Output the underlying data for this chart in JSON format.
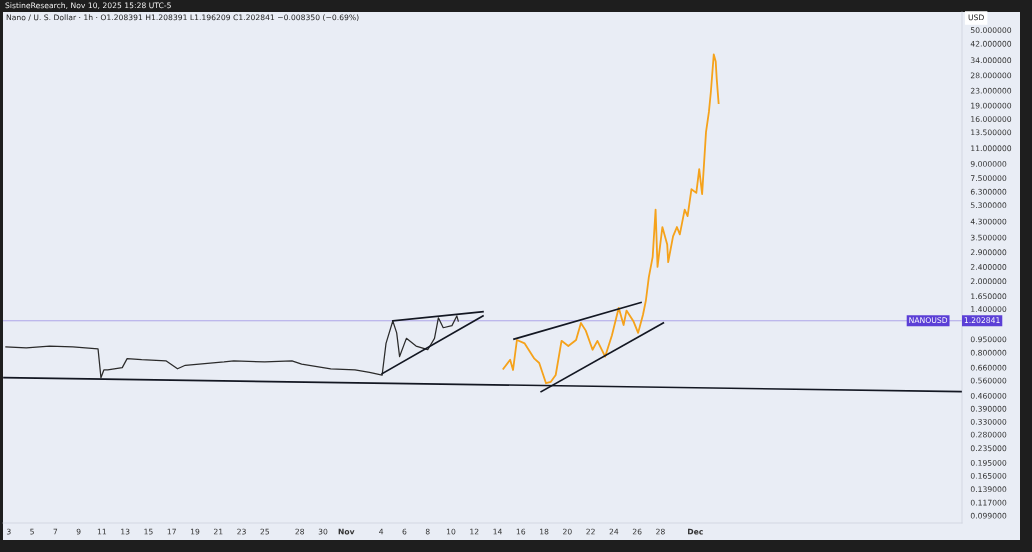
{
  "chart_data": {
    "type": "line",
    "title": "Nano / U. S. Dollar · 1h · O1.208391 H1.208391 L1.196209 C1.202841 −0.008350 (−0.69%)",
    "annotations": [
      "SistineResearch, Nov 10, 2025 15:28 UTC-5",
      "1.202841"
    ],
    "ylabel": "USD",
    "log": true,
    "xlim": [
      "2025-10-02T12:00",
      "2025-12-23T22:00"
    ],
    "xticks": [
      {
        "value": "2025-10-03",
        "label": "3"
      },
      {
        "value": "2025-10-05",
        "label": "5"
      },
      {
        "value": "2025-10-07",
        "label": "7"
      },
      {
        "value": "2025-10-09",
        "label": "9"
      },
      {
        "value": "2025-10-11",
        "label": "11"
      },
      {
        "value": "2025-10-13",
        "label": "13"
      },
      {
        "value": "2025-10-15",
        "label": "15"
      },
      {
        "value": "2025-10-17",
        "label": "17"
      },
      {
        "value": "2025-10-19",
        "label": "19"
      },
      {
        "value": "2025-10-21",
        "label": "21"
      },
      {
        "value": "2025-10-23",
        "label": "23"
      },
      {
        "value": "2025-10-25",
        "label": "25"
      },
      {
        "value": "2025-10-28",
        "label": "28"
      },
      {
        "value": "2025-10-30",
        "label": "30"
      },
      {
        "value": "2025-11-01",
        "label": "Nov"
      },
      {
        "value": "2025-11-04",
        "label": "4"
      },
      {
        "value": "2025-11-06",
        "label": "6"
      },
      {
        "value": "2025-11-08",
        "label": "8"
      },
      {
        "value": "2025-11-10",
        "label": "10"
      },
      {
        "value": "2025-11-12",
        "label": "12"
      },
      {
        "value": "2025-11-14",
        "label": "14"
      },
      {
        "value": "2025-11-16",
        "label": "16"
      },
      {
        "value": "2025-11-18",
        "label": "18"
      },
      {
        "value": "2025-11-20",
        "label": "20"
      },
      {
        "value": "2025-11-22",
        "label": "22"
      },
      {
        "value": "2025-11-24",
        "label": "24"
      },
      {
        "value": "2025-11-26",
        "label": "26"
      },
      {
        "value": "2025-11-28",
        "label": "28"
      },
      {
        "value": "2025-12-01",
        "label": "Dec"
      }
    ],
    "ylim": [
      0.09,
      63
    ],
    "yticks": [
      {
        "value": 50,
        "label": "50.000000"
      },
      {
        "value": 42,
        "label": "42.000000"
      },
      {
        "value": 34,
        "label": "34.000000"
      },
      {
        "value": 28,
        "label": "28.000000"
      },
      {
        "value": 23,
        "label": "23.000000"
      },
      {
        "value": 19,
        "label": "19.000000"
      },
      {
        "value": 16,
        "label": "16.000000"
      },
      {
        "value": 13.5,
        "label": "13.500000"
      },
      {
        "value": 11,
        "label": "11.000000"
      },
      {
        "value": 9,
        "label": "9.000000"
      },
      {
        "value": 7.5,
        "label": "7.500000"
      },
      {
        "value": 6.3,
        "label": "6.300000"
      },
      {
        "value": 5.3,
        "label": "5.300000"
      },
      {
        "value": 4.3,
        "label": "4.300000"
      },
      {
        "value": 3.5,
        "label": "3.500000"
      },
      {
        "value": 2.9,
        "label": "2.900000"
      },
      {
        "value": 2.4,
        "label": "2.400000"
      },
      {
        "value": 2.0,
        "label": "2.000000"
      },
      {
        "value": 1.65,
        "label": "1.650000"
      },
      {
        "value": 1.4,
        "label": "1.400000"
      },
      {
        "value": 0.95,
        "label": "0.950000"
      },
      {
        "value": 0.8,
        "label": "0.800000"
      },
      {
        "value": 0.66,
        "label": "0.660000"
      },
      {
        "value": 0.56,
        "label": "0.560000"
      },
      {
        "value": 0.46,
        "label": "0.460000"
      },
      {
        "value": 0.39,
        "label": "0.390000"
      },
      {
        "value": 0.33,
        "label": "0.330000"
      },
      {
        "value": 0.28,
        "label": "0.280000"
      },
      {
        "value": 0.235,
        "label": "0.235000"
      },
      {
        "value": 0.195,
        "label": "0.195000"
      },
      {
        "value": 0.165,
        "label": "0.165000"
      },
      {
        "value": 0.139,
        "label": "0.139000"
      },
      {
        "value": 0.117,
        "label": "0.117000"
      },
      {
        "value": 0.099,
        "label": "0.099000"
      }
    ],
    "grid": false,
    "ref_lines": [
      {
        "axis": "y",
        "value": 1.202841,
        "label": "NANOUSD",
        "color": "#5b3fd6"
      }
    ],
    "series": [
      {
        "color": "#2b2b2b",
        "x": [
          "2025-10-02T18:00",
          "2025-10-04T12:00",
          "2025-10-06T12:00",
          "2025-10-08T12:00",
          "2025-10-10T16:00",
          "2025-10-10T22:00",
          "2025-10-11T04:00",
          "2025-10-11T12:00",
          "2025-10-12T18:00",
          "2025-10-13T04:00",
          "2025-10-14T10:00",
          "2025-10-16T12:00",
          "2025-10-17T12:00",
          "2025-10-18T04:00",
          "2025-10-21T12:00",
          "2025-10-22T08:00",
          "2025-10-25T00:00",
          "2025-10-27T08:00",
          "2025-10-28T04:00",
          "2025-10-30T16:00",
          "2025-11-01T18:00",
          "2025-11-03T00:00",
          "2025-11-04T02:00",
          "2025-11-04T10:00",
          "2025-11-05T00:00",
          "2025-11-05T08:00",
          "2025-11-05T14:00",
          "2025-11-06T04:00",
          "2025-11-07T00:00",
          "2025-11-08T00:00",
          "2025-11-08T14:00",
          "2025-11-08T22:00",
          "2025-11-09T08:00",
          "2025-11-10T02:00",
          "2025-11-10T12:00",
          "2025-11-10T15:00"
        ],
        "values": [
          0.86,
          0.85,
          0.87,
          0.86,
          0.84,
          0.58,
          0.64,
          0.64,
          0.66,
          0.74,
          0.73,
          0.72,
          0.65,
          0.68,
          0.71,
          0.72,
          0.71,
          0.72,
          0.69,
          0.65,
          0.64,
          0.62,
          0.6,
          0.9,
          1.2,
          1.03,
          0.76,
          0.96,
          0.87,
          0.83,
          0.96,
          1.25,
          1.1,
          1.13,
          1.28,
          1.2
        ]
      },
      {
        "color": "#f5a21b",
        "x": [
          "2025-11-14T12:00",
          "2025-11-15T02:00",
          "2025-11-15T08:00",
          "2025-11-15T16:00",
          "2025-11-16T08:00",
          "2025-11-17T04:00",
          "2025-11-17T14:00",
          "2025-11-18T04:00",
          "2025-11-18T14:00",
          "2025-11-19T00:00",
          "2025-11-19T12:00",
          "2025-11-20T02:00",
          "2025-11-20T18:00",
          "2025-11-21T04:00",
          "2025-11-21T14:00",
          "2025-11-22T04:00",
          "2025-11-22T14:00",
          "2025-11-23T06:00",
          "2025-11-23T20:00",
          "2025-11-24T10:00",
          "2025-11-24T20:00",
          "2025-11-25T02:00",
          "2025-11-25T16:00",
          "2025-11-26T02:00",
          "2025-11-26T12:00",
          "2025-11-26T18:00",
          "2025-11-27T00:00",
          "2025-11-27T08:00",
          "2025-11-27T14:00",
          "2025-11-27T18:00",
          "2025-11-28T04:00",
          "2025-11-28T14:00",
          "2025-11-28T16:00",
          "2025-11-29T02:00",
          "2025-11-29T10:00",
          "2025-11-29T16:00",
          "2025-11-30T02:00",
          "2025-11-30T08:00",
          "2025-11-30T16:00",
          "2025-12-01T02:00",
          "2025-12-01T08:00",
          "2025-12-01T14:00",
          "2025-12-01T22:00",
          "2025-12-02T04:00",
          "2025-12-02T08:00",
          "2025-12-02T14:00",
          "2025-12-02T18:00",
          "2025-12-02T20:00",
          "2025-12-03T00:00"
        ],
        "values": [
          0.65,
          0.73,
          0.64,
          0.94,
          0.9,
          0.74,
          0.7,
          0.54,
          0.55,
          0.6,
          0.93,
          0.87,
          0.94,
          1.17,
          1.06,
          0.83,
          0.93,
          0.76,
          1.0,
          1.42,
          1.14,
          1.37,
          1.2,
          1.03,
          1.3,
          1.56,
          2.1,
          2.73,
          5.0,
          2.4,
          4.0,
          3.2,
          2.55,
          3.55,
          4.0,
          3.64,
          5.0,
          4.6,
          6.5,
          6.2,
          8.4,
          6.1,
          13.5,
          17.5,
          22.6,
          36.6,
          33.4,
          27.0,
          19.6
        ]
      },
      {
        "type": "line",
        "color": "#131722",
        "x": [
          "2025-10-02T14:00",
          "2025-12-23T20:00"
        ],
        "values": [
          0.58,
          0.485
        ]
      },
      {
        "type": "line",
        "color": "#131722",
        "x": [
          "2025-11-05T00:00",
          "2025-11-12T18:00"
        ],
        "values": [
          1.2,
          1.35
        ]
      },
      {
        "type": "line",
        "color": "#131722",
        "x": [
          "2025-11-04T02:00",
          "2025-11-12T18:00"
        ],
        "values": [
          0.61,
          1.28
        ]
      },
      {
        "type": "line",
        "color": "#131722",
        "x": [
          "2025-11-15T10:00",
          "2025-11-26T08:00"
        ],
        "values": [
          0.95,
          1.52
        ]
      },
      {
        "type": "line",
        "color": "#131722",
        "x": [
          "2025-11-17T18:00",
          "2025-11-28T06:00"
        ],
        "values": [
          0.485,
          1.17
        ]
      }
    ]
  }
}
